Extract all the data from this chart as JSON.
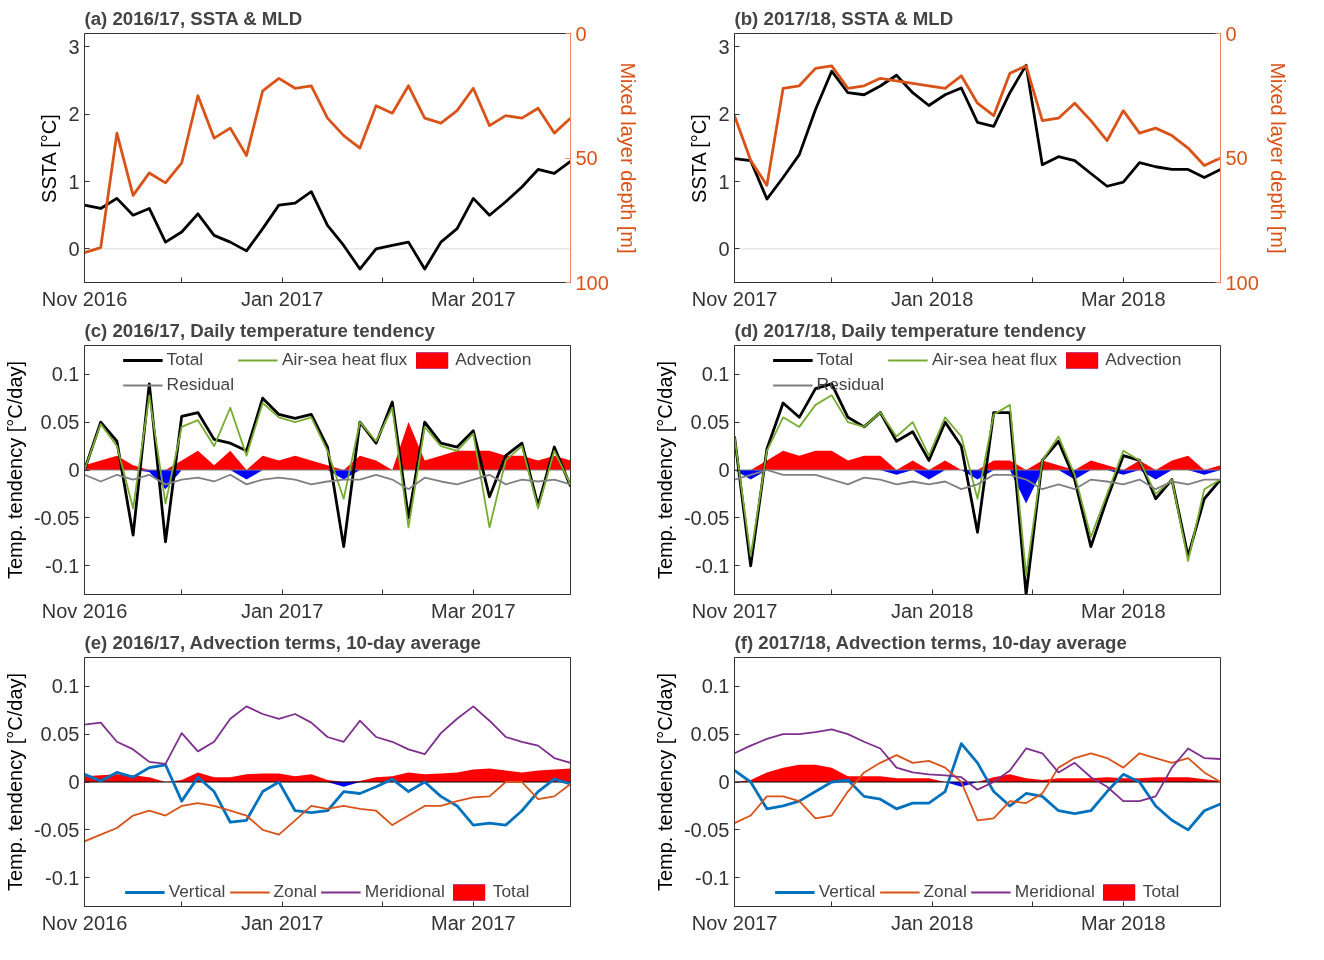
{
  "chart_data": [
    {
      "type": "line",
      "title": "(a) 2016/17, SSTA & MLD",
      "ylabel": "SSTA [°C]",
      "y2label": "Mixed layer depth [m]",
      "grid": false,
      "legend": false,
      "x": [
        "2016-11-01",
        "2016-11-06",
        "2016-11-11",
        "2016-11-16",
        "2016-11-21",
        "2016-11-26",
        "2016-12-01",
        "2016-12-06",
        "2016-12-11",
        "2016-12-16",
        "2016-12-21",
        "2016-12-26",
        "2016-12-31",
        "2017-01-05",
        "2017-01-10",
        "2017-01-15",
        "2017-01-20",
        "2017-01-25",
        "2017-01-30",
        "2017-02-04",
        "2017-02-09",
        "2017-02-14",
        "2017-02-19",
        "2017-02-24",
        "2017-03-01",
        "2017-03-06",
        "2017-03-11",
        "2017-03-16",
        "2017-03-21",
        "2017-03-26",
        "2017-03-31"
      ],
      "xlim": [
        "2016-11-01",
        "2017-03-31"
      ],
      "xticks": [
        {
          "value": "2016-11-01",
          "label": "Nov 2016"
        },
        {
          "value": "2016-12-01",
          "label": null
        },
        {
          "value": "2017-01-01",
          "label": "Jan 2017"
        },
        {
          "value": "2017-02-01",
          "label": null
        },
        {
          "value": "2017-03-01",
          "label": "Mar 2017"
        }
      ],
      "ylim": [
        -0.5,
        3.2
      ],
      "yticks": [
        0,
        1,
        2,
        3
      ],
      "y2lim": [
        100,
        0
      ],
      "y2ticks": [
        0,
        50,
        100
      ],
      "ref_lines": [
        {
          "axis": "y",
          "value": 0,
          "color": "#dddddd"
        }
      ],
      "series": [
        {
          "color": "#000000",
          "values": [
            0.65,
            0.6,
            0.75,
            0.5,
            0.6,
            0.1,
            0.25,
            0.52,
            0.2,
            0.1,
            -0.03,
            0.3,
            0.65,
            0.68,
            0.85,
            0.35,
            0.05,
            -0.3,
            0.0,
            0.05,
            0.1,
            -0.3,
            0.1,
            0.3,
            0.75,
            0.5,
            0.7,
            0.92,
            1.18,
            1.12,
            1.3
          ]
        },
        {
          "color": "#d95319",
          "axis": "y2",
          "values": [
            88,
            86,
            40,
            65,
            56,
            60,
            52,
            25,
            42,
            38,
            49,
            23,
            18,
            22,
            21,
            34,
            41,
            46,
            29,
            32,
            21,
            34,
            36,
            31,
            22,
            37,
            33,
            34,
            30,
            40,
            34
          ]
        }
      ]
    },
    {
      "type": "line",
      "title": "(b) 2017/18, SSTA & MLD",
      "ylabel": "SSTA [°C]",
      "y2label": "Mixed layer depth [m]",
      "grid": false,
      "legend": false,
      "x": [
        "2017-11-01",
        "2017-11-06",
        "2017-11-11",
        "2017-11-16",
        "2017-11-21",
        "2017-11-26",
        "2017-12-01",
        "2017-12-06",
        "2017-12-11",
        "2017-12-16",
        "2017-12-21",
        "2017-12-26",
        "2017-12-31",
        "2018-01-05",
        "2018-01-10",
        "2018-01-15",
        "2018-01-20",
        "2018-01-25",
        "2018-01-30",
        "2018-02-04",
        "2018-02-09",
        "2018-02-14",
        "2018-02-19",
        "2018-02-24",
        "2018-03-01",
        "2018-03-06",
        "2018-03-11",
        "2018-03-16",
        "2018-03-21",
        "2018-03-26",
        "2018-03-31"
      ],
      "xlim": [
        "2017-11-01",
        "2018-03-31"
      ],
      "xticks": [
        {
          "value": "2017-11-01",
          "label": "Nov 2017"
        },
        {
          "value": "2017-12-01",
          "label": null
        },
        {
          "value": "2018-01-01",
          "label": "Jan 2018"
        },
        {
          "value": "2018-02-01",
          "label": null
        },
        {
          "value": "2018-03-01",
          "label": "Mar 2018"
        }
      ],
      "ylim": [
        -0.5,
        3.2
      ],
      "yticks": [
        0,
        1,
        2,
        3
      ],
      "y2lim": [
        100,
        0
      ],
      "y2ticks": [
        0,
        50,
        100
      ],
      "ref_lines": [
        {
          "axis": "y",
          "value": 0,
          "color": "#dddddd"
        }
      ],
      "series": [
        {
          "color": "#000000",
          "values": [
            1.34,
            1.31,
            0.74,
            1.06,
            1.4,
            2.07,
            2.64,
            2.32,
            2.29,
            2.42,
            2.58,
            2.32,
            2.13,
            2.29,
            2.39,
            1.88,
            1.82,
            2.32,
            2.73,
            1.25,
            1.37,
            1.31,
            1.12,
            0.93,
            0.99,
            1.28,
            1.22,
            1.18,
            1.18,
            1.06,
            1.18
          ]
        },
        {
          "color": "#d95319",
          "axis": "y2",
          "values": [
            33,
            51,
            61,
            22,
            21,
            14,
            13,
            22,
            21,
            18,
            19,
            20,
            21,
            22,
            17,
            28,
            33,
            16,
            13,
            35,
            34,
            28,
            35,
            43,
            31,
            40,
            38,
            41,
            46,
            53,
            50
          ]
        }
      ]
    },
    {
      "type": "line",
      "title": "(c) 2016/17, Daily temperature tendency",
      "ylabel": "Temp. tendency [°C/day]",
      "grid": false,
      "legend": "top",
      "x": [
        "2016-11-01",
        "2016-11-06",
        "2016-11-11",
        "2016-11-16",
        "2016-11-21",
        "2016-11-26",
        "2016-12-01",
        "2016-12-06",
        "2016-12-11",
        "2016-12-16",
        "2016-12-21",
        "2016-12-26",
        "2016-12-31",
        "2017-01-05",
        "2017-01-10",
        "2017-01-15",
        "2017-01-20",
        "2017-01-25",
        "2017-01-30",
        "2017-02-04",
        "2017-02-09",
        "2017-02-14",
        "2017-02-19",
        "2017-02-24",
        "2017-03-01",
        "2017-03-06",
        "2017-03-11",
        "2017-03-16",
        "2017-03-21",
        "2017-03-26",
        "2017-03-31"
      ],
      "xlim": [
        "2016-11-01",
        "2017-03-31"
      ],
      "xticks": [
        {
          "value": "2016-11-01",
          "label": "Nov 2016"
        },
        {
          "value": "2016-12-01",
          "label": null
        },
        {
          "value": "2017-01-01",
          "label": "Jan 2017"
        },
        {
          "value": "2017-02-01",
          "label": null
        },
        {
          "value": "2017-03-01",
          "label": "Mar 2017"
        }
      ],
      "ylim": [
        -0.13,
        0.13
      ],
      "yticks": [
        -0.1,
        -0.05,
        0,
        0.05,
        0.1
      ],
      "ref_lines": [
        {
          "axis": "y",
          "value": 0,
          "color": "#808080"
        }
      ],
      "series": [
        {
          "type": "area",
          "name": "Advection",
          "color": "#ff0000",
          "values": [
            0.005,
            0.01,
            0.015,
            0.005,
            0,
            0,
            0.01,
            0.02,
            0.005,
            0.02,
            0,
            0.015,
            0.01,
            0.015,
            0.01,
            0.005,
            0,
            0.015,
            0.01,
            0,
            0.05,
            0.01,
            0.015,
            0.02,
            0.02,
            0.02,
            0.015,
            0.015,
            0.01,
            0.015,
            0.01
          ]
        },
        {
          "type": "area",
          "color": "#0000ff",
          "values": [
            0,
            0,
            0,
            0,
            -0.002,
            -0.02,
            0,
            0,
            0,
            0,
            -0.01,
            0,
            0,
            0,
            0,
            0,
            -0.01,
            0,
            0,
            0,
            0,
            0,
            0,
            0,
            0,
            0,
            0,
            0,
            0,
            0,
            0
          ]
        },
        {
          "name": "Total",
          "color": "#000000",
          "values": [
            0.0,
            0.05,
            0.03,
            -0.068,
            0.09,
            -0.075,
            0.056,
            0.06,
            0.032,
            0.028,
            0.02,
            0.075,
            0.058,
            0.054,
            0.058,
            0.024,
            -0.08,
            0.05,
            0.028,
            0.071,
            -0.05,
            0.05,
            0.028,
            0.024,
            0.041,
            -0.028,
            0.015,
            0.028,
            -0.037,
            0.024,
            -0.017
          ]
        },
        {
          "name": "Air-sea heat flux",
          "color": "#77ac30",
          "values": [
            0.0,
            0.048,
            0.025,
            -0.04,
            0.078,
            -0.035,
            0.045,
            0.052,
            0.025,
            0.065,
            0.015,
            0.07,
            0.055,
            0.05,
            0.055,
            0.02,
            -0.03,
            0.05,
            0.03,
            0.065,
            -0.06,
            0.045,
            0.025,
            0.02,
            0.038,
            -0.06,
            0.01,
            0.025,
            -0.04,
            0.02,
            -0.015
          ]
        },
        {
          "name": "Residual",
          "color": "#808080",
          "values": [
            -0.005,
            -0.012,
            -0.005,
            -0.01,
            -0.005,
            -0.015,
            -0.01,
            -0.008,
            -0.012,
            -0.005,
            -0.015,
            -0.01,
            -0.008,
            -0.01,
            -0.015,
            -0.012,
            -0.01,
            -0.01,
            -0.005,
            -0.01,
            -0.02,
            -0.008,
            -0.012,
            -0.015,
            -0.01,
            -0.005,
            -0.015,
            -0.01,
            -0.012,
            -0.01,
            -0.015
          ]
        }
      ]
    },
    {
      "type": "line",
      "title": "(d) 2017/18, Daily temperature tendency",
      "ylabel": "Temp. tendency [°C/day]",
      "grid": false,
      "legend": "top",
      "x": [
        "2017-11-01",
        "2017-11-06",
        "2017-11-11",
        "2017-11-16",
        "2017-11-21",
        "2017-11-26",
        "2017-12-01",
        "2017-12-06",
        "2017-12-11",
        "2017-12-16",
        "2017-12-21",
        "2017-12-26",
        "2017-12-31",
        "2018-01-05",
        "2018-01-10",
        "2018-01-15",
        "2018-01-20",
        "2018-01-25",
        "2018-01-30",
        "2018-02-04",
        "2018-02-09",
        "2018-02-14",
        "2018-02-19",
        "2018-02-24",
        "2018-03-01",
        "2018-03-06",
        "2018-03-11",
        "2018-03-16",
        "2018-03-21",
        "2018-03-26",
        "2018-03-31"
      ],
      "xlim": [
        "2017-11-01",
        "2018-03-31"
      ],
      "xticks": [
        {
          "value": "2017-11-01",
          "label": "Nov 2017"
        },
        {
          "value": "2017-12-01",
          "label": null
        },
        {
          "value": "2018-01-01",
          "label": "Jan 2018"
        },
        {
          "value": "2018-02-01",
          "label": null
        },
        {
          "value": "2018-03-01",
          "label": "Mar 2018"
        }
      ],
      "ylim": [
        -0.13,
        0.13
      ],
      "yticks": [
        -0.1,
        -0.05,
        0,
        0.05,
        0.1
      ],
      "ref_lines": [
        {
          "axis": "y",
          "value": 0,
          "color": "#808080"
        }
      ],
      "series": [
        {
          "type": "area",
          "name": "Advection",
          "color": "#ff0000",
          "values": [
            0,
            0,
            0.01,
            0.02,
            0.015,
            0.02,
            0.02,
            0.01,
            0.015,
            0.015,
            0,
            0.01,
            0,
            0.01,
            0,
            0,
            0.01,
            0.01,
            0,
            0.01,
            0.005,
            0,
            0.01,
            0.005,
            0,
            0.01,
            0,
            0.01,
            0.015,
            0,
            0.005
          ]
        },
        {
          "type": "area",
          "color": "#0000ff",
          "values": [
            0,
            -0.01,
            0,
            0,
            0,
            0,
            0,
            0,
            0,
            0,
            -0.005,
            0,
            -0.01,
            0,
            0,
            -0.01,
            0,
            0,
            -0.035,
            0,
            0,
            -0.01,
            0,
            0,
            -0.005,
            0,
            -0.01,
            0,
            0,
            -0.005,
            0
          ]
        },
        {
          "name": "Total",
          "color": "#000000",
          "values": [
            0.035,
            -0.1,
            0.022,
            0.07,
            0.055,
            0.085,
            0.09,
            0.055,
            0.045,
            0.06,
            0.03,
            0.04,
            0.01,
            0.05,
            0.025,
            -0.065,
            0.06,
            0.06,
            -0.13,
            0.01,
            0.03,
            -0.01,
            -0.08,
            -0.03,
            0.015,
            0.01,
            -0.03,
            -0.01,
            -0.09,
            -0.03,
            -0.01
          ]
        },
        {
          "name": "Air-sea heat flux",
          "color": "#77ac30",
          "values": [
            0.035,
            -0.09,
            0.02,
            0.055,
            0.045,
            0.068,
            0.078,
            0.05,
            0.045,
            0.06,
            0.035,
            0.05,
            0.015,
            0.055,
            0.035,
            -0.03,
            0.058,
            0.068,
            -0.11,
            0.01,
            0.035,
            -0.005,
            -0.07,
            -0.025,
            0.02,
            0.01,
            -0.025,
            -0.01,
            -0.095,
            -0.02,
            -0.01
          ]
        },
        {
          "name": "Residual",
          "color": "#808080",
          "values": [
            -0.01,
            -0.005,
            0.0,
            -0.005,
            -0.005,
            -0.005,
            -0.01,
            -0.015,
            -0.008,
            -0.01,
            -0.015,
            -0.012,
            -0.015,
            -0.012,
            -0.02,
            -0.015,
            -0.005,
            -0.005,
            -0.01,
            -0.02,
            -0.015,
            -0.02,
            -0.01,
            -0.012,
            -0.015,
            -0.01,
            -0.02,
            -0.012,
            -0.015,
            -0.01,
            -0.01
          ]
        }
      ]
    },
    {
      "type": "line",
      "title": "(e) 2016/17, Advection terms, 10-day average",
      "ylabel": "Temp. tendency [°C/day]",
      "grid": false,
      "legend": "bottom",
      "x": [
        "2016-11-01",
        "2016-11-06",
        "2016-11-11",
        "2016-11-16",
        "2016-11-21",
        "2016-11-26",
        "2016-12-01",
        "2016-12-06",
        "2016-12-11",
        "2016-12-16",
        "2016-12-21",
        "2016-12-26",
        "2016-12-31",
        "2017-01-05",
        "2017-01-10",
        "2017-01-15",
        "2017-01-20",
        "2017-01-25",
        "2017-01-30",
        "2017-02-04",
        "2017-02-09",
        "2017-02-14",
        "2017-02-19",
        "2017-02-24",
        "2017-03-01",
        "2017-03-06",
        "2017-03-11",
        "2017-03-16",
        "2017-03-21",
        "2017-03-26",
        "2017-03-31"
      ],
      "xlim": [
        "2016-11-01",
        "2017-03-31"
      ],
      "xticks": [
        {
          "value": "2016-11-01",
          "label": "Nov 2016"
        },
        {
          "value": "2016-12-01",
          "label": null
        },
        {
          "value": "2017-01-01",
          "label": "Jan 2017"
        },
        {
          "value": "2017-02-01",
          "label": null
        },
        {
          "value": "2017-03-01",
          "label": "Mar 2017"
        }
      ],
      "ylim": [
        -0.13,
        0.13
      ],
      "yticks": [
        -0.1,
        -0.05,
        0,
        0.05,
        0.1
      ],
      "ref_lines": [
        {
          "axis": "y",
          "value": 0,
          "color": "#000000"
        }
      ],
      "series": [
        {
          "type": "area",
          "name": "Total",
          "color": "#ff0000",
          "values": [
            0.006,
            0.007,
            0.008,
            0.007,
            0.005,
            0,
            0.002,
            0.01,
            0.005,
            0.005,
            0.008,
            0.009,
            0.009,
            0.006,
            0.008,
            0.002,
            0,
            0.001,
            0.005,
            0.006,
            0.01,
            0.008,
            0.009,
            0.01,
            0.013,
            0.014,
            0.012,
            0.01,
            0.012,
            0.013,
            0.014
          ]
        },
        {
          "type": "area",
          "color": "#0000ff",
          "values": [
            0,
            0,
            0,
            0,
            0,
            0,
            0,
            0,
            0,
            0,
            0,
            0,
            0,
            0,
            0,
            0,
            -0.005,
            0,
            0,
            0,
            0,
            0,
            0,
            0,
            0,
            0,
            0,
            0,
            0,
            0,
            0
          ]
        },
        {
          "name": "Vertical",
          "color": "#0072bd",
          "values": [
            0.008,
            0.001,
            0.01,
            0.005,
            0.015,
            0.018,
            -0.02,
            0.005,
            -0.01,
            -0.042,
            -0.04,
            -0.01,
            0.0,
            -0.03,
            -0.032,
            -0.03,
            -0.01,
            -0.012,
            -0.005,
            0.003,
            -0.01,
            0.0,
            -0.015,
            -0.025,
            -0.045,
            -0.043,
            -0.045,
            -0.03,
            -0.01,
            0.003,
            -0.002
          ]
        },
        {
          "name": "Zonal",
          "color": "#d95319",
          "values": [
            -0.062,
            -0.055,
            -0.048,
            -0.035,
            -0.03,
            -0.035,
            -0.025,
            -0.022,
            -0.025,
            -0.03,
            -0.035,
            -0.05,
            -0.055,
            -0.04,
            -0.025,
            -0.028,
            -0.025,
            -0.028,
            -0.03,
            -0.045,
            -0.035,
            -0.025,
            -0.025,
            -0.02,
            -0.016,
            -0.015,
            0.0,
            0.0,
            -0.018,
            -0.015,
            -0.002
          ]
        },
        {
          "name": "Meridional",
          "color": "#7e2f8e",
          "values": [
            0.06,
            0.062,
            0.042,
            0.034,
            0.021,
            0.019,
            0.051,
            0.032,
            0.042,
            0.066,
            0.079,
            0.071,
            0.066,
            0.071,
            0.062,
            0.047,
            0.042,
            0.064,
            0.047,
            0.042,
            0.034,
            0.029,
            0.051,
            0.066,
            0.079,
            0.064,
            0.047,
            0.042,
            0.038,
            0.025,
            0.02
          ]
        }
      ]
    },
    {
      "type": "line",
      "title": "(f) 2017/18, Advection terms, 10-day average",
      "ylabel": "Temp. tendency [°C/day]",
      "grid": false,
      "legend": "bottom",
      "x": [
        "2017-11-01",
        "2017-11-06",
        "2017-11-11",
        "2017-11-16",
        "2017-11-21",
        "2017-11-26",
        "2017-12-01",
        "2017-12-06",
        "2017-12-11",
        "2017-12-16",
        "2017-12-21",
        "2017-12-26",
        "2017-12-31",
        "2018-01-05",
        "2018-01-10",
        "2018-01-15",
        "2018-01-20",
        "2018-01-25",
        "2018-01-30",
        "2018-02-04",
        "2018-02-09",
        "2018-02-14",
        "2018-02-19",
        "2018-02-24",
        "2018-03-01",
        "2018-03-06",
        "2018-03-11",
        "2018-03-16",
        "2018-03-21",
        "2018-03-26",
        "2018-03-31"
      ],
      "xlim": [
        "2017-11-01",
        "2018-03-31"
      ],
      "xticks": [
        {
          "value": "2017-11-01",
          "label": "Nov 2017"
        },
        {
          "value": "2017-12-01",
          "label": null
        },
        {
          "value": "2018-01-01",
          "label": "Jan 2018"
        },
        {
          "value": "2018-02-01",
          "label": null
        },
        {
          "value": "2018-03-01",
          "label": "Mar 2018"
        }
      ],
      "ylim": [
        -0.13,
        0.13
      ],
      "yticks": [
        -0.1,
        -0.05,
        0,
        0.05,
        0.1
      ],
      "ref_lines": [
        {
          "axis": "y",
          "value": 0,
          "color": "#000000"
        }
      ],
      "series": [
        {
          "type": "area",
          "name": "Total",
          "color": "#ff0000",
          "values": [
            0,
            0.002,
            0.01,
            0.015,
            0.018,
            0.018,
            0.015,
            0.006,
            0.006,
            0.006,
            0.004,
            0.004,
            0.004,
            0,
            0,
            0,
            0.005,
            0.008,
            0.004,
            0.002,
            0.004,
            0.004,
            0.004,
            0.005,
            0.004,
            0.004,
            0.005,
            0.005,
            0.005,
            0.003,
            0.001
          ]
        },
        {
          "type": "area",
          "color": "#0000ff",
          "values": [
            0,
            0,
            0,
            0,
            0,
            0,
            0,
            0,
            0,
            0,
            0,
            0,
            0,
            0,
            -0.005,
            0,
            0,
            0,
            0,
            0,
            0,
            0,
            0,
            0,
            0,
            0,
            0,
            0,
            0,
            0,
            0
          ]
        },
        {
          "name": "Vertical",
          "color": "#0072bd",
          "values": [
            0.012,
            0.0,
            -0.028,
            -0.025,
            -0.02,
            -0.01,
            0.0,
            0.002,
            -0.015,
            -0.018,
            -0.028,
            -0.022,
            -0.022,
            -0.01,
            0.04,
            0.02,
            -0.01,
            -0.025,
            -0.012,
            -0.015,
            -0.03,
            -0.033,
            -0.03,
            -0.01,
            0.008,
            0.0,
            -0.025,
            -0.04,
            -0.05,
            -0.03,
            -0.023
          ]
        },
        {
          "name": "Zonal",
          "color": "#d95319",
          "values": [
            -0.043,
            -0.035,
            -0.015,
            -0.015,
            -0.02,
            -0.038,
            -0.035,
            -0.01,
            0.01,
            0.02,
            0.028,
            0.02,
            0.022,
            0.015,
            0.0,
            -0.04,
            -0.038,
            -0.02,
            -0.022,
            -0.012,
            0.015,
            0.025,
            0.03,
            0.025,
            0.015,
            0.03,
            0.025,
            0.02,
            0.025,
            0.01,
            0.0
          ]
        },
        {
          "name": "Meridional",
          "color": "#7e2f8e",
          "values": [
            0.03,
            0.038,
            0.045,
            0.05,
            0.05,
            0.052,
            0.055,
            0.05,
            0.042,
            0.035,
            0.015,
            0.01,
            0.008,
            0.007,
            0.005,
            -0.008,
            0.0,
            0.012,
            0.035,
            0.03,
            0.01,
            0.02,
            0.005,
            -0.005,
            -0.02,
            -0.02,
            -0.015,
            0.015,
            0.035,
            0.025,
            0.024
          ]
        }
      ]
    }
  ]
}
